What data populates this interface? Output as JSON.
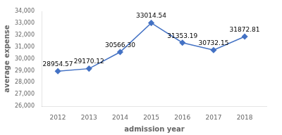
{
  "chart_data": {
    "type": "line",
    "x": [
      2012,
      2013,
      2014,
      2015,
      2016,
      2017,
      2018
    ],
    "values": [
      28954.57,
      29170.12,
      30566.3,
      33014.54,
      31353.19,
      30732.15,
      31872.81
    ],
    "value_labels": [
      "28954.57",
      "29170.12",
      "30566.30",
      "33014.54",
      "31353.19",
      "30732.15",
      "31872.81"
    ],
    "data_labels": true,
    "xlabel": "admission year",
    "ylabel": "average expense",
    "xlim": [
      2011.5,
      2018.7
    ],
    "xticks": [
      2012,
      2013,
      2014,
      2015,
      2016,
      2017,
      2018
    ],
    "ylim": [
      26000,
      34000
    ],
    "yticks": [
      {
        "value": 26000,
        "label": "26,000"
      },
      {
        "value": 27000,
        "label": "27,000"
      },
      {
        "value": 28000,
        "label": "28,000"
      },
      {
        "value": 29000,
        "label": "29,000"
      },
      {
        "value": 30000,
        "label": "30,000"
      },
      {
        "value": 31000,
        "label": "31,000"
      },
      {
        "value": 32000,
        "label": "32,000"
      },
      {
        "value": 33000,
        "label": "33,000"
      },
      {
        "value": 34000,
        "label": "34,000"
      }
    ],
    "color": "#4472c4",
    "marker": "diamond",
    "grid": false
  }
}
